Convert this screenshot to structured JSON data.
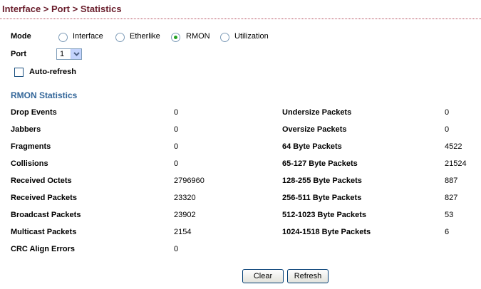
{
  "header": {
    "title": "Interface > Port > Statistics"
  },
  "mode": {
    "label": "Mode",
    "options": [
      {
        "label": "Interface",
        "checked": false
      },
      {
        "label": "Etherlike",
        "checked": false
      },
      {
        "label": "RMON",
        "checked": true
      },
      {
        "label": "Utilization",
        "checked": false
      }
    ]
  },
  "port": {
    "label": "Port",
    "value": "1"
  },
  "auto_refresh": {
    "label": "Auto-refresh",
    "checked": false
  },
  "rmon": {
    "title": "RMON Statistics",
    "left": [
      {
        "label": "Drop Events",
        "value": "0"
      },
      {
        "label": "Jabbers",
        "value": "0"
      },
      {
        "label": "Fragments",
        "value": "0"
      },
      {
        "label": "Collisions",
        "value": "0"
      },
      {
        "label": "Received Octets",
        "value": "2796960"
      },
      {
        "label": "Received Packets",
        "value": "23320"
      },
      {
        "label": "Broadcast Packets",
        "value": "23902"
      },
      {
        "label": "Multicast Packets",
        "value": "2154"
      },
      {
        "label": "CRC Align Errors",
        "value": "0"
      }
    ],
    "right": [
      {
        "label": "Undersize Packets",
        "value": "0"
      },
      {
        "label": "Oversize Packets",
        "value": "0"
      },
      {
        "label": "64 Byte Packets",
        "value": "4522"
      },
      {
        "label": "65-127 Byte Packets",
        "value": "21524"
      },
      {
        "label": "128-255 Byte Packets",
        "value": "887"
      },
      {
        "label": "256-511 Byte Packets",
        "value": "827"
      },
      {
        "label": "512-1023 Byte Packets",
        "value": "53"
      },
      {
        "label": "1024-1518 Byte Packets",
        "value": "6"
      }
    ]
  },
  "buttons": {
    "clear": "Clear",
    "refresh": "Refresh"
  },
  "colors": {
    "title": "#6a1e2c",
    "section_title": "#336699",
    "radio_checked": "#21a121"
  }
}
